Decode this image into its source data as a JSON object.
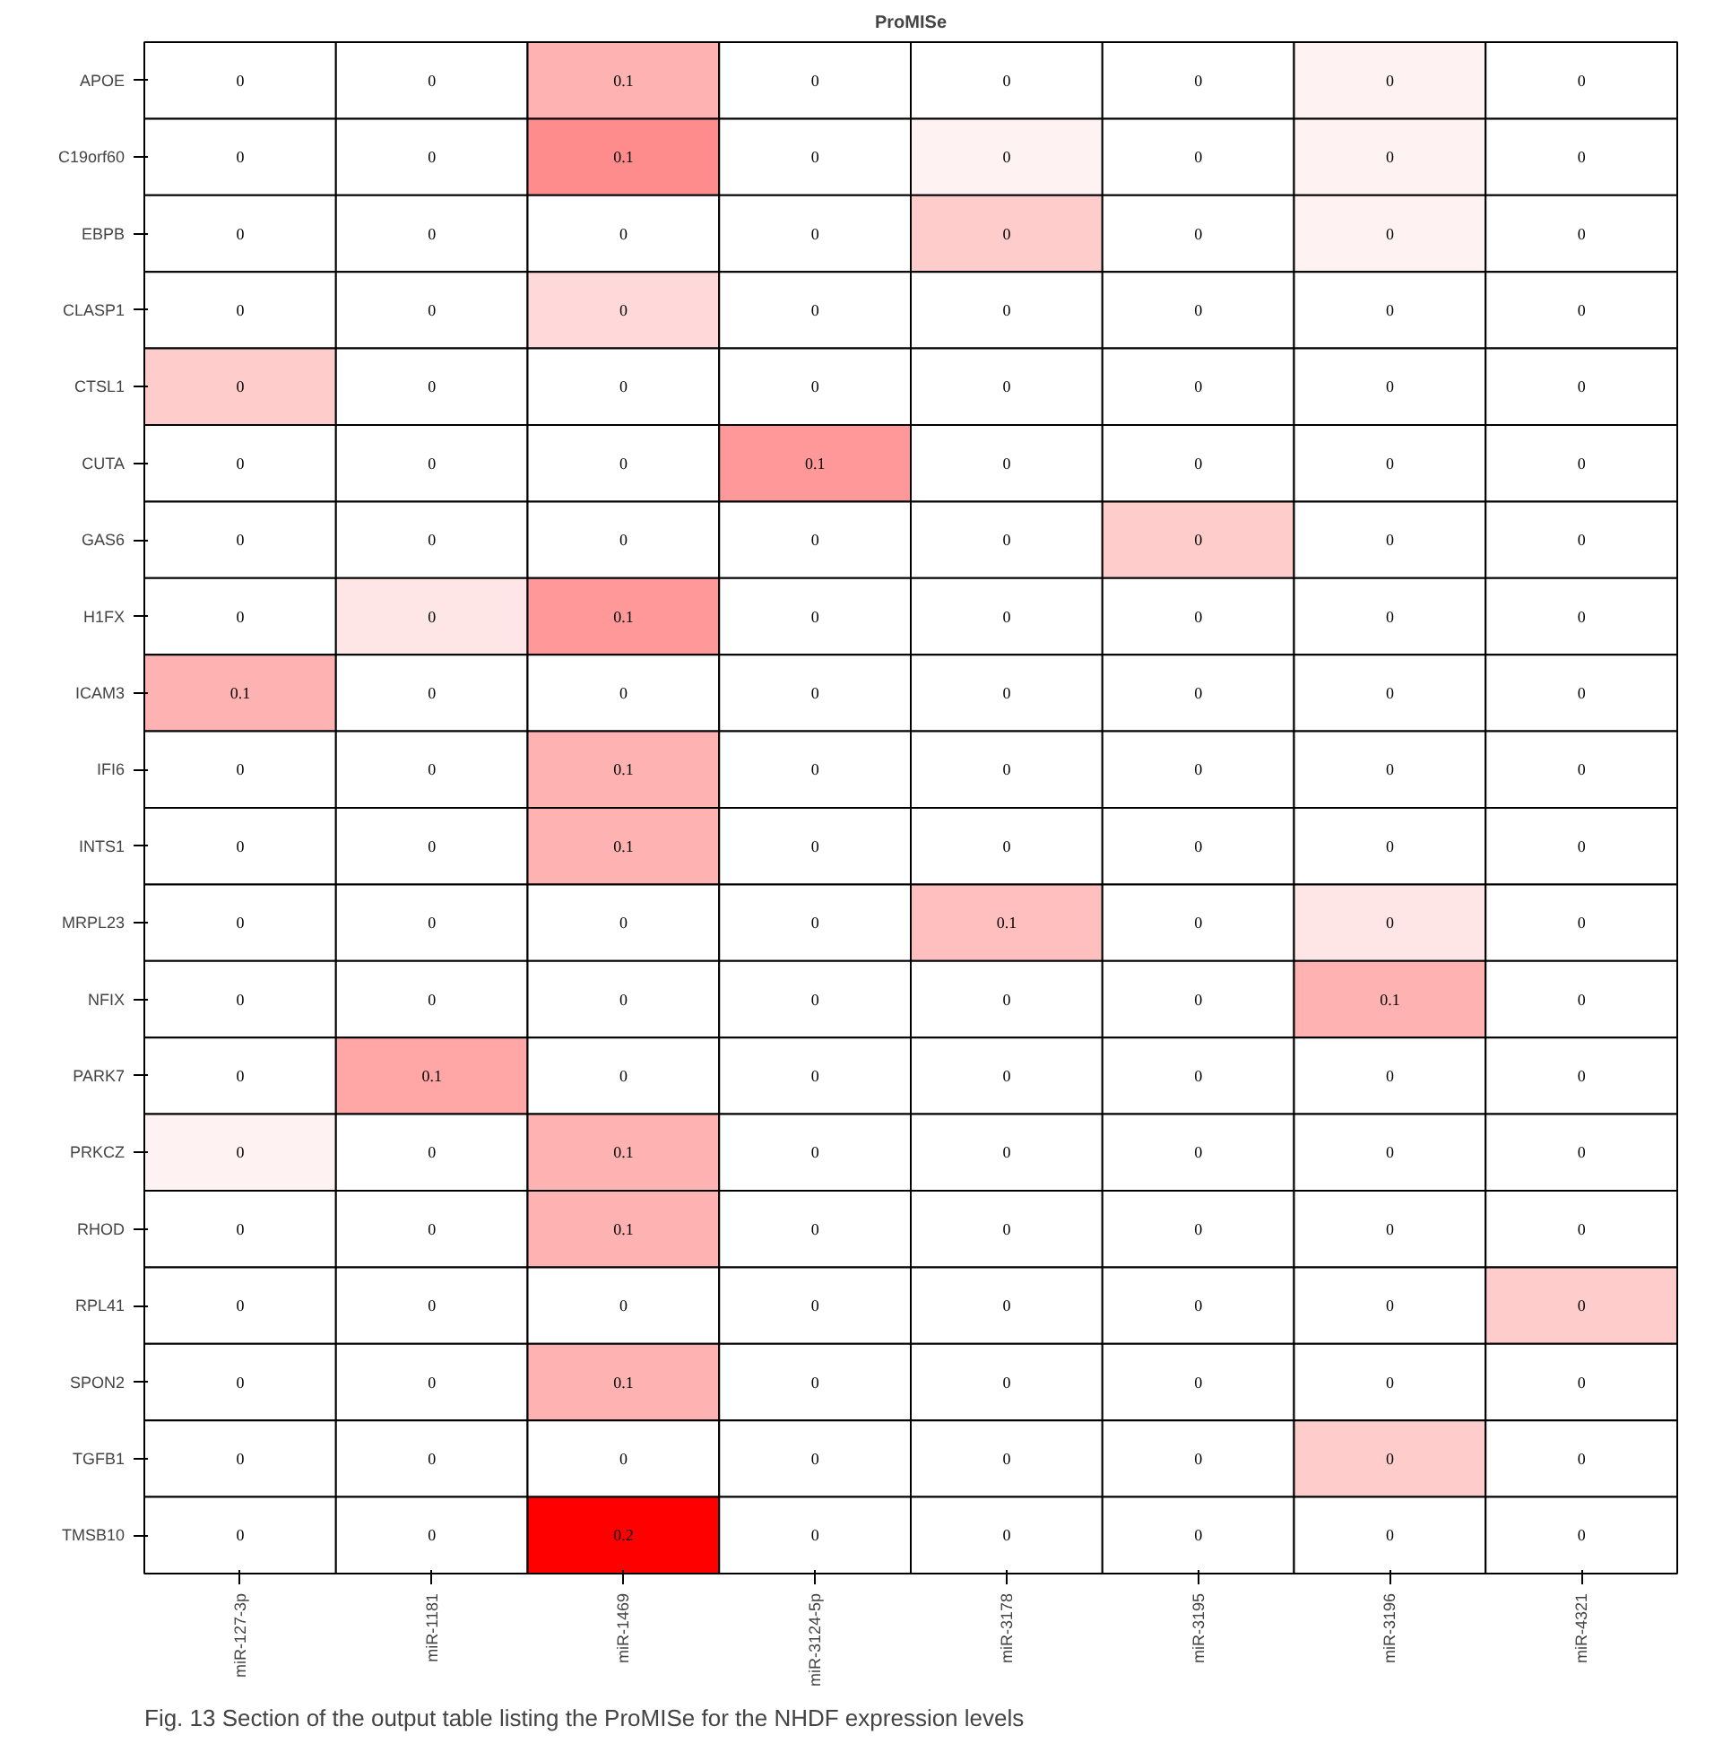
{
  "chart_data": {
    "type": "heatmap",
    "title": "ProMISe",
    "categories": [
      "miR-127-3p",
      "miR-1181",
      "miR-1469",
      "miR-3124-5p",
      "miR-3178",
      "miR-3195",
      "miR-3196",
      "miR-4321"
    ],
    "y_categories": [
      "APOE",
      "C19orf60",
      "EBPB",
      "CLASP1",
      "CTSL1",
      "CUTA",
      "GAS6",
      "H1FX",
      "ICAM3",
      "IFI6",
      "INTS1",
      "MRPL23",
      "NFIX",
      "PARK7",
      "PRKCZ",
      "RHOD",
      "RPL41",
      "SPON2",
      "TGFB1",
      "TMSB10"
    ],
    "cells": [
      [
        0,
        0,
        0.06,
        0,
        0,
        0,
        0.01,
        0
      ],
      [
        0,
        0,
        0.09,
        0,
        0.01,
        0,
        0.01,
        0
      ],
      [
        0,
        0,
        0,
        0,
        0.04,
        0,
        0.01,
        0
      ],
      [
        0,
        0,
        0.03,
        0,
        0,
        0,
        0,
        0
      ],
      [
        0.04,
        0,
        0,
        0,
        0,
        0,
        0,
        0
      ],
      [
        0,
        0,
        0,
        0.08,
        0,
        0,
        0,
        0
      ],
      [
        0,
        0,
        0,
        0,
        0,
        0.04,
        0,
        0
      ],
      [
        0,
        0.02,
        0.08,
        0,
        0,
        0,
        0,
        0
      ],
      [
        0.06,
        0,
        0,
        0,
        0,
        0,
        0,
        0
      ],
      [
        0,
        0,
        0.06,
        0,
        0,
        0,
        0,
        0
      ],
      [
        0,
        0,
        0.06,
        0,
        0,
        0,
        0,
        0
      ],
      [
        0,
        0,
        0,
        0,
        0.05,
        0,
        0.02,
        0
      ],
      [
        0,
        0,
        0,
        0,
        0,
        0,
        0.06,
        0
      ],
      [
        0,
        0.07,
        0,
        0,
        0,
        0,
        0,
        0
      ],
      [
        0.01,
        0,
        0.06,
        0,
        0,
        0,
        0,
        0
      ],
      [
        0,
        0,
        0.06,
        0,
        0,
        0,
        0,
        0
      ],
      [
        0,
        0,
        0,
        0,
        0,
        0,
        0,
        0.04
      ],
      [
        0,
        0,
        0.06,
        0,
        0,
        0,
        0,
        0
      ],
      [
        0,
        0,
        0,
        0,
        0,
        0,
        0.04,
        0
      ],
      [
        0,
        0,
        0.2,
        0,
        0,
        0,
        0,
        0
      ]
    ],
    "cell_labels": [
      [
        "0",
        "0",
        "0.1",
        "0",
        "0",
        "0",
        "0",
        "0"
      ],
      [
        "0",
        "0",
        "0.1",
        "0",
        "0",
        "0",
        "0",
        "0"
      ],
      [
        "0",
        "0",
        "0",
        "0",
        "0",
        "0",
        "0",
        "0"
      ],
      [
        "0",
        "0",
        "0",
        "0",
        "0",
        "0",
        "0",
        "0"
      ],
      [
        "0",
        "0",
        "0",
        "0",
        "0",
        "0",
        "0",
        "0"
      ],
      [
        "0",
        "0",
        "0",
        "0.1",
        "0",
        "0",
        "0",
        "0"
      ],
      [
        "0",
        "0",
        "0",
        "0",
        "0",
        "0",
        "0",
        "0"
      ],
      [
        "0",
        "0",
        "0.1",
        "0",
        "0",
        "0",
        "0",
        "0"
      ],
      [
        "0.1",
        "0",
        "0",
        "0",
        "0",
        "0",
        "0",
        "0"
      ],
      [
        "0",
        "0",
        "0.1",
        "0",
        "0",
        "0",
        "0",
        "0"
      ],
      [
        "0",
        "0",
        "0.1",
        "0",
        "0",
        "0",
        "0",
        "0"
      ],
      [
        "0",
        "0",
        "0",
        "0",
        "0.1",
        "0",
        "0",
        "0"
      ],
      [
        "0",
        "0",
        "0",
        "0",
        "0",
        "0",
        "0.1",
        "0"
      ],
      [
        "0",
        "0.1",
        "0",
        "0",
        "0",
        "0",
        "0",
        "0"
      ],
      [
        "0",
        "0",
        "0.1",
        "0",
        "0",
        "0",
        "0",
        "0"
      ],
      [
        "0",
        "0",
        "0.1",
        "0",
        "0",
        "0",
        "0",
        "0"
      ],
      [
        "0",
        "0",
        "0",
        "0",
        "0",
        "0",
        "0",
        "0"
      ],
      [
        "0",
        "0",
        "0.1",
        "0",
        "0",
        "0",
        "0",
        "0"
      ],
      [
        "0",
        "0",
        "0",
        "0",
        "0",
        "0",
        "0",
        "0"
      ],
      [
        "0",
        "0",
        "0.2",
        "0",
        "0",
        "0",
        "0",
        "0"
      ]
    ],
    "annotations": [
      "Fig. 13 Section of the output table listing the ProMISe for the NHDF expression levels"
    ]
  }
}
